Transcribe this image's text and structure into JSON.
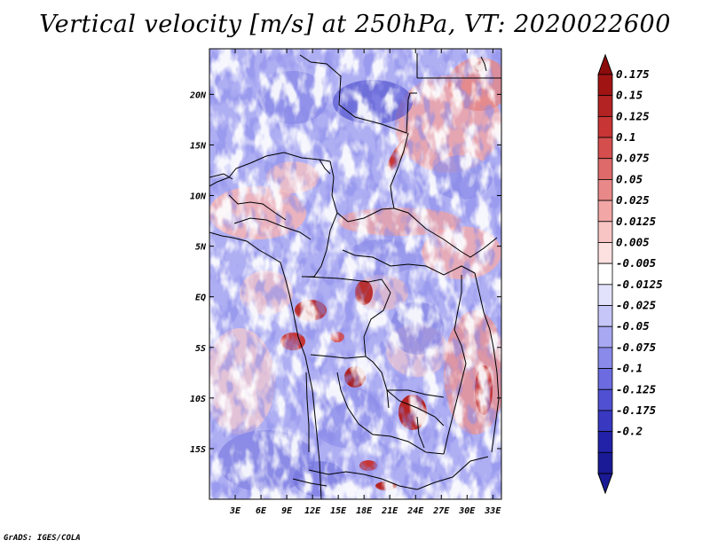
{
  "title": "Vertical velocity [m/s] at 250hPa, VT: 2020022600",
  "credit": "GrADS: IGES/COLA",
  "chart_data": {
    "type": "heatmap",
    "title": "Vertical velocity [m/s] at 250hPa, VT: 2020022600",
    "variable": "Vertical velocity",
    "units": "m/s",
    "level": "250hPa",
    "valid_time": "2020022600",
    "lon_range": [
      0,
      34
    ],
    "lat_range": [
      -20,
      24.5
    ],
    "x_ticks": [
      {
        "value": 3,
        "label": "3E"
      },
      {
        "value": 6,
        "label": "6E"
      },
      {
        "value": 9,
        "label": "9E"
      },
      {
        "value": 12,
        "label": "12E"
      },
      {
        "value": 15,
        "label": "15E"
      },
      {
        "value": 18,
        "label": "18E"
      },
      {
        "value": 21,
        "label": "21E"
      },
      {
        "value": 24,
        "label": "24E"
      },
      {
        "value": 27,
        "label": "27E"
      },
      {
        "value": 30,
        "label": "30E"
      },
      {
        "value": 33,
        "label": "33E"
      }
    ],
    "y_ticks": [
      {
        "value": 20,
        "label": "20N"
      },
      {
        "value": 15,
        "label": "15N"
      },
      {
        "value": 10,
        "label": "10N"
      },
      {
        "value": 5,
        "label": "5N"
      },
      {
        "value": 0,
        "label": "EQ"
      },
      {
        "value": -5,
        "label": "5S"
      },
      {
        "value": -10,
        "label": "10S"
      },
      {
        "value": -15,
        "label": "15S"
      }
    ],
    "colorbar": {
      "levels": [
        {
          "label": "0.175",
          "color": "#a01414"
        },
        {
          "label": "0.15",
          "color": "#b42323"
        },
        {
          "label": "0.125",
          "color": "#c73535"
        },
        {
          "label": "0.1",
          "color": "#d44e4e"
        },
        {
          "label": "0.075",
          "color": "#de6a6a"
        },
        {
          "label": "0.05",
          "color": "#e88888"
        },
        {
          "label": "0.025",
          "color": "#f2a6a6"
        },
        {
          "label": "0.0125",
          "color": "#f8c4c4"
        },
        {
          "label": "0.005",
          "color": "#fde0e0"
        },
        {
          "label": "-0.005",
          "color": "#ffffff"
        },
        {
          "label": "-0.0125",
          "color": "#e2e2fd"
        },
        {
          "label": "-0.025",
          "color": "#c6c6f8"
        },
        {
          "label": "-0.05",
          "color": "#a8a8f2"
        },
        {
          "label": "-0.075",
          "color": "#8a8aea"
        },
        {
          "label": "-0.1",
          "color": "#6c6ce0"
        },
        {
          "label": "-0.125",
          "color": "#5050d2"
        },
        {
          "label": "-0.175",
          "color": "#3838c0"
        },
        {
          "label": "-0.2",
          "color": "#2222a8"
        }
      ],
      "top_color": "#8c0c0c",
      "bottom_color": "#1a1a96",
      "interior_color": "#ffffff"
    }
  }
}
